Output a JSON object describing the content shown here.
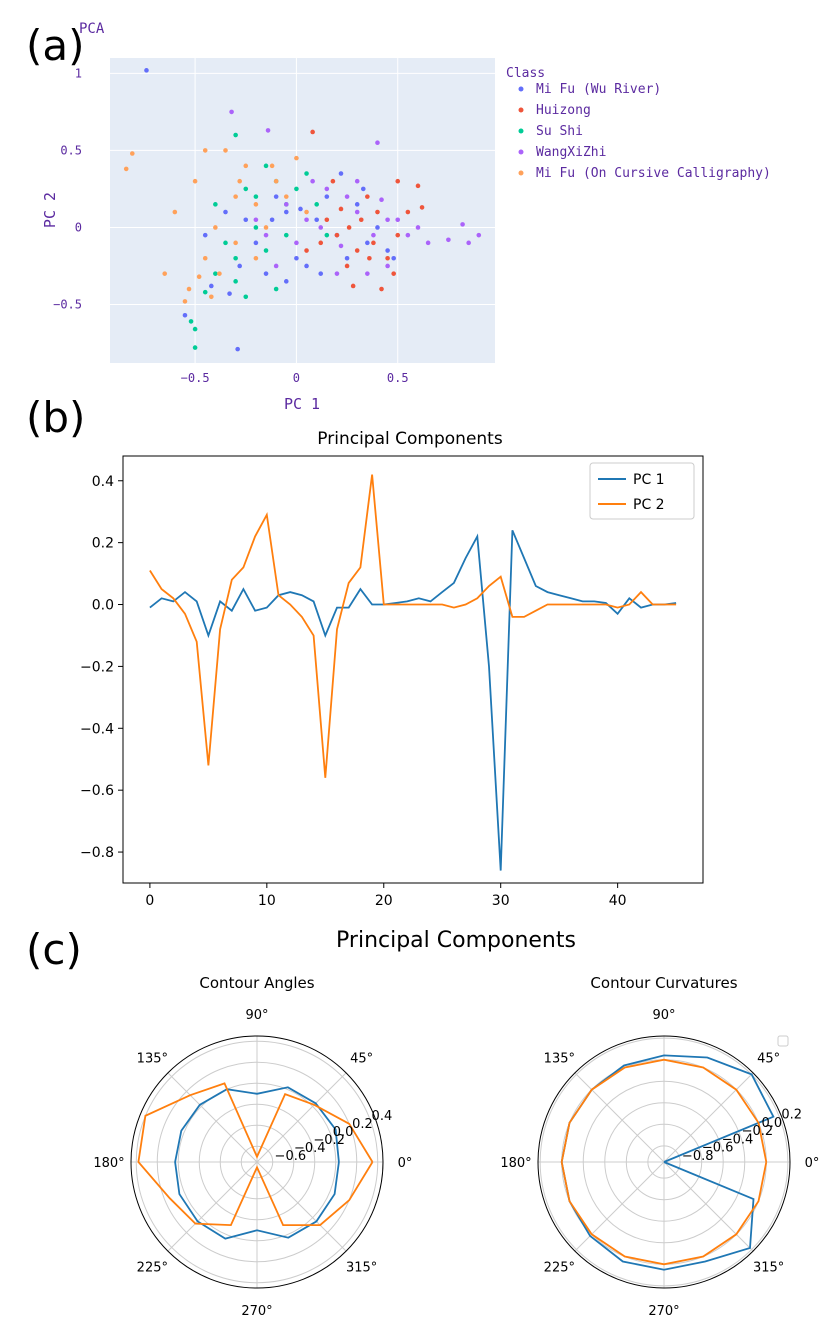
{
  "panels": {
    "a_label": "(a)",
    "b_label": "(b)",
    "c_label": "(c)"
  },
  "chart_data": [
    {
      "type": "scatter",
      "title": "PCA",
      "xlabel": "PC 1",
      "ylabel": "PC 2",
      "xlim": [
        -0.92,
        0.98
      ],
      "ylim": [
        -0.88,
        1.1
      ],
      "xticks": [
        -0.5,
        0,
        0.5
      ],
      "xtick_labels": [
        "−0.5",
        "0",
        "0.5"
      ],
      "yticks": [
        -0.5,
        0,
        0.5,
        1
      ],
      "ytick_labels": [
        "−0.5",
        "0",
        "0.5",
        "1"
      ],
      "legend_title": "Class",
      "legend_position": "right",
      "grid": true,
      "background": "#E5ECF6",
      "series": [
        {
          "name": "Mi Fu (Wu River)",
          "color": "#636EFA",
          "points": [
            [
              -0.74,
              1.02
            ],
            [
              -0.55,
              -0.57
            ],
            [
              -0.29,
              -0.79
            ],
            [
              -0.33,
              -0.43
            ],
            [
              -0.45,
              -0.05
            ],
            [
              -0.35,
              0.1
            ],
            [
              -0.2,
              -0.1
            ],
            [
              -0.1,
              0.2
            ],
            [
              0.0,
              -0.2
            ],
            [
              0.1,
              0.05
            ],
            [
              0.2,
              -0.05
            ],
            [
              0.3,
              0.15
            ],
            [
              0.35,
              -0.1
            ],
            [
              0.4,
              0.0
            ],
            [
              0.45,
              -0.15
            ],
            [
              -0.05,
              -0.35
            ],
            [
              0.05,
              -0.25
            ],
            [
              0.15,
              0.2
            ],
            [
              -0.15,
              -0.3
            ],
            [
              -0.25,
              0.05
            ],
            [
              0.25,
              -0.2
            ],
            [
              0.48,
              -0.2
            ],
            [
              -0.12,
              0.05
            ],
            [
              0.02,
              0.12
            ],
            [
              -0.28,
              -0.25
            ],
            [
              -0.42,
              -0.38
            ],
            [
              0.22,
              0.35
            ],
            [
              -0.05,
              0.1
            ],
            [
              0.12,
              -0.3
            ],
            [
              0.33,
              0.25
            ]
          ]
        },
        {
          "name": "Huizong",
          "color": "#EF553B",
          "points": [
            [
              0.08,
              0.62
            ],
            [
              0.5,
              -0.05
            ],
            [
              0.55,
              0.1
            ],
            [
              0.6,
              0.27
            ],
            [
              0.62,
              0.13
            ],
            [
              0.45,
              -0.2
            ],
            [
              0.38,
              -0.1
            ],
            [
              0.3,
              -0.15
            ],
            [
              0.25,
              -0.25
            ],
            [
              0.2,
              -0.05
            ],
            [
              0.15,
              0.05
            ],
            [
              0.4,
              0.1
            ],
            [
              0.35,
              0.2
            ],
            [
              0.5,
              0.3
            ],
            [
              0.28,
              -0.38
            ],
            [
              0.42,
              -0.4
            ],
            [
              0.12,
              -0.1
            ],
            [
              0.22,
              0.12
            ],
            [
              0.32,
              0.05
            ],
            [
              0.48,
              -0.3
            ],
            [
              0.18,
              0.3
            ],
            [
              0.36,
              -0.2
            ],
            [
              0.05,
              -0.15
            ],
            [
              0.26,
              0.0
            ]
          ]
        },
        {
          "name": "Su Shi",
          "color": "#00CC96",
          "points": [
            [
              -0.5,
              -0.78
            ],
            [
              -0.5,
              -0.66
            ],
            [
              -0.52,
              -0.61
            ],
            [
              -0.45,
              -0.42
            ],
            [
              -0.4,
              -0.3
            ],
            [
              -0.3,
              -0.2
            ],
            [
              -0.2,
              0.0
            ],
            [
              -0.1,
              0.3
            ],
            [
              -0.05,
              0.15
            ],
            [
              0.05,
              0.35
            ],
            [
              -0.3,
              0.6
            ],
            [
              -0.15,
              0.4
            ],
            [
              -0.25,
              0.25
            ],
            [
              -0.35,
              -0.1
            ],
            [
              -0.15,
              -0.15
            ],
            [
              0.0,
              0.25
            ],
            [
              0.1,
              0.15
            ],
            [
              -0.25,
              -0.45
            ],
            [
              -0.05,
              -0.05
            ],
            [
              -0.4,
              0.15
            ],
            [
              -0.2,
              0.2
            ],
            [
              0.15,
              -0.05
            ],
            [
              -0.3,
              -0.35
            ],
            [
              -0.1,
              -0.4
            ]
          ]
        },
        {
          "name": "WangXiZhi",
          "color": "#AB63FA",
          "points": [
            [
              -0.32,
              0.75
            ],
            [
              -0.14,
              0.63
            ],
            [
              0.9,
              -0.05
            ],
            [
              0.85,
              -0.1
            ],
            [
              0.82,
              0.02
            ],
            [
              0.75,
              -0.08
            ],
            [
              0.65,
              -0.1
            ],
            [
              0.55,
              -0.05
            ],
            [
              0.45,
              0.05
            ],
            [
              0.38,
              -0.05
            ],
            [
              0.3,
              0.1
            ],
            [
              0.22,
              -0.12
            ],
            [
              0.15,
              0.25
            ],
            [
              0.05,
              0.05
            ],
            [
              -0.05,
              0.15
            ],
            [
              0.0,
              -0.1
            ],
            [
              0.12,
              0.0
            ],
            [
              0.25,
              0.2
            ],
            [
              0.35,
              -0.3
            ],
            [
              0.42,
              0.18
            ],
            [
              0.5,
              0.05
            ],
            [
              0.6,
              0.0
            ],
            [
              -0.1,
              -0.25
            ],
            [
              -0.2,
              0.05
            ],
            [
              0.2,
              -0.3
            ],
            [
              0.45,
              -0.25
            ],
            [
              0.4,
              0.55
            ],
            [
              0.3,
              0.3
            ],
            [
              0.08,
              0.3
            ],
            [
              -0.15,
              -0.05
            ]
          ]
        },
        {
          "name": "Mi Fu (On Cursive Calligraphy)",
          "color": "#FFA15A",
          "points": [
            [
              -0.84,
              0.38
            ],
            [
              -0.81,
              0.48
            ],
            [
              -0.65,
              -0.3
            ],
            [
              -0.55,
              -0.48
            ],
            [
              -0.53,
              -0.4
            ],
            [
              -0.45,
              -0.2
            ],
            [
              -0.4,
              0.0
            ],
            [
              -0.3,
              0.2
            ],
            [
              -0.35,
              0.5
            ],
            [
              -0.25,
              0.4
            ],
            [
              -0.2,
              0.15
            ],
            [
              -0.1,
              0.3
            ],
            [
              0.0,
              0.45
            ],
            [
              -0.45,
              0.5
            ],
            [
              -0.5,
              0.3
            ],
            [
              -0.6,
              0.1
            ],
            [
              -0.38,
              -0.3
            ],
            [
              -0.3,
              -0.1
            ],
            [
              -0.15,
              0.0
            ],
            [
              -0.05,
              0.2
            ],
            [
              0.05,
              0.1
            ],
            [
              -0.2,
              -0.2
            ],
            [
              -0.42,
              -0.45
            ],
            [
              -0.28,
              0.3
            ],
            [
              -0.48,
              -0.32
            ],
            [
              -0.12,
              0.4
            ]
          ]
        }
      ]
    },
    {
      "type": "line",
      "title": "Principal Components",
      "xlabel": "",
      "ylabel": "",
      "xlim": [
        -2.3,
        47.3
      ],
      "ylim": [
        -0.9,
        0.48
      ],
      "xticks": [
        0,
        10,
        20,
        30,
        40
      ],
      "yticks": [
        -0.8,
        -0.6,
        -0.4,
        -0.2,
        0.0,
        0.2,
        0.4
      ],
      "ytick_labels": [
        "−0.8",
        "−0.6",
        "−0.4",
        "−0.2",
        "0.0",
        "0.2",
        "0.4"
      ],
      "legend_position": "top-right",
      "x": [
        0,
        1,
        2,
        3,
        4,
        5,
        6,
        7,
        8,
        9,
        10,
        11,
        12,
        13,
        14,
        15,
        16,
        17,
        18,
        19,
        20,
        21,
        22,
        23,
        24,
        25,
        26,
        27,
        28,
        29,
        30,
        31,
        32,
        33,
        34,
        35,
        36,
        37,
        38,
        39,
        40,
        41,
        42,
        43,
        44,
        45
      ],
      "series": [
        {
          "name": "PC 1",
          "color": "#1F77B4",
          "values": [
            -0.01,
            0.02,
            0.01,
            0.04,
            0.01,
            -0.1,
            0.01,
            -0.02,
            0.05,
            -0.02,
            -0.01,
            0.03,
            0.04,
            0.03,
            0.01,
            -0.1,
            -0.01,
            -0.01,
            0.05,
            0.0,
            0.0,
            0.005,
            0.01,
            0.02,
            0.01,
            0.04,
            0.07,
            0.15,
            0.22,
            -0.2,
            -0.86,
            0.24,
            0.15,
            0.06,
            0.04,
            0.03,
            0.02,
            0.01,
            0.01,
            0.005,
            -0.03,
            0.02,
            -0.01,
            0.0,
            0.0,
            0.005
          ]
        },
        {
          "name": "PC 2",
          "color": "#FF7F0E",
          "values": [
            0.11,
            0.05,
            0.02,
            -0.03,
            -0.12,
            -0.52,
            -0.08,
            0.08,
            0.12,
            0.22,
            0.29,
            0.03,
            0.0,
            -0.04,
            -0.1,
            -0.56,
            -0.08,
            0.07,
            0.12,
            0.42,
            0.0,
            0.0,
            0.0,
            0.0,
            0.0,
            0.0,
            -0.01,
            0.0,
            0.02,
            0.06,
            0.09,
            -0.04,
            -0.04,
            -0.02,
            0.0,
            0.0,
            0.0,
            0.0,
            0.0,
            0.0,
            -0.01,
            0.0,
            0.04,
            0.0,
            0.0,
            0.0
          ]
        }
      ]
    },
    {
      "type": "line",
      "subtype": "polar",
      "title": "Contour Angles",
      "rlim": [
        -0.75,
        0.45
      ],
      "rticks": [
        -0.6,
        -0.4,
        -0.2,
        0.0,
        0.2,
        0.4
      ],
      "rtick_labels": [
        "−0.6",
        "−0.4",
        "−0.2",
        "0.0",
        "0.2",
        "0.4"
      ],
      "theta_labels": [
        "0°",
        "45°",
        "90°",
        "135°",
        "180°",
        "225°",
        "270°",
        "315°"
      ],
      "theta_deg": [
        0,
        22.5,
        45,
        67.5,
        90,
        112.5,
        135,
        157.5,
        180,
        202.5,
        225,
        247.5,
        270,
        292.5,
        315,
        337.5
      ],
      "series": [
        {
          "name": "PC 1",
          "color": "#1F77B4",
          "values": [
            0.03,
            0.06,
            0.04,
            0.02,
            -0.1,
            0.0,
            0.02,
            0.03,
            0.03,
            0.05,
            0.05,
            0.04,
            -0.1,
            0.03,
            0.05,
            0.05
          ]
        },
        {
          "name": "PC 2",
          "color": "#FF7F0E",
          "values": [
            0.35,
            0.2,
            0.02,
            -0.05,
            -0.7,
            0.06,
            0.15,
            0.4,
            0.38,
            0.15,
            0.08,
            -0.1,
            -0.7,
            -0.1,
            0.1,
            0.2
          ]
        }
      ]
    },
    {
      "type": "line",
      "subtype": "polar",
      "title": "Contour Curvatures",
      "rlim": [
        -0.95,
        0.22
      ],
      "rticks": [
        -0.8,
        -0.6,
        -0.4,
        -0.2,
        0.0,
        0.2
      ],
      "rtick_labels": [
        "−0.8",
        "−0.6",
        "−0.4",
        "−0.2",
        "0.0",
        "0.2"
      ],
      "theta_labels": [
        "0°",
        "45°",
        "90°",
        "135°",
        "180°",
        "225°",
        "270°",
        "315°"
      ],
      "theta_deg": [
        0,
        22.5,
        45,
        67.5,
        90,
        112.5,
        135,
        157.5,
        180,
        202.5,
        225,
        247.5,
        270,
        292.5,
        315,
        337.5
      ],
      "series": [
        {
          "name": "PC 1",
          "color": "#1F77B4",
          "values": [
            -0.95,
            0.15,
            0.2,
            0.1,
            0.04,
            0.02,
            0.0,
            0.0,
            0.0,
            0.0,
            0.02,
            0.05,
            0.05,
            0.05,
            0.18,
            -0.05
          ]
        },
        {
          "name": "PC 2",
          "color": "#FF7F0E",
          "values": [
            0.0,
            0.0,
            0.0,
            0.0,
            0.0,
            0.0,
            0.0,
            0.0,
            0.0,
            0.0,
            0.0,
            0.0,
            0.0,
            0.0,
            0.0,
            0.0
          ]
        }
      ]
    }
  ],
  "figure_c_title": "Principal Components"
}
